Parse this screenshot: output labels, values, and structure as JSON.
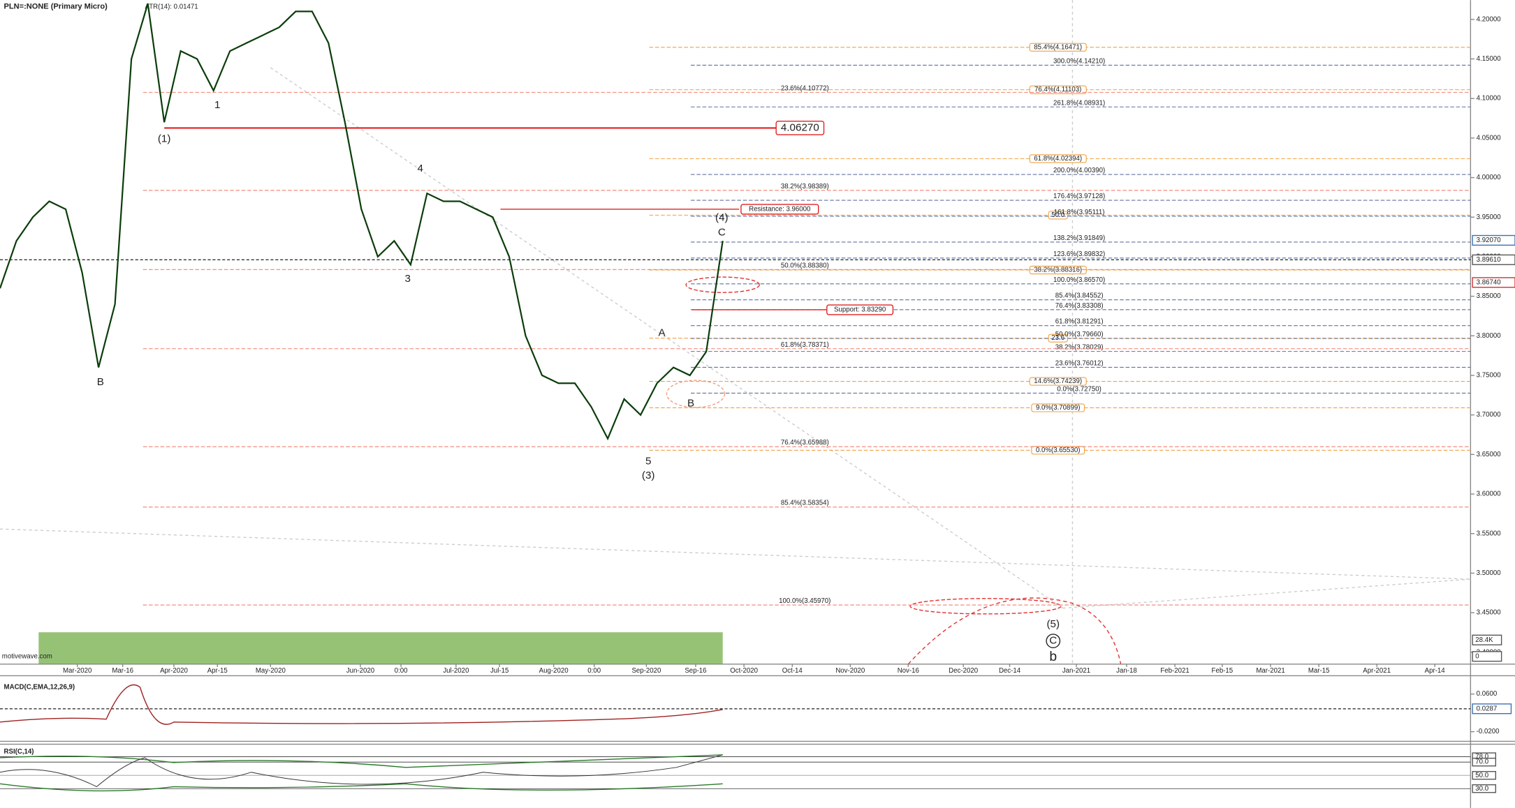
{
  "chart_data": {
    "type": "line",
    "title": "PLN=:NONE (Primary Micro)",
    "indicator": "ATR(14): 0.01471",
    "watermark": "motivewave.com",
    "ylim": [
      3.385,
      4.2244
    ],
    "yticks": [
      {
        "value": 4.2,
        "label": "4.20000"
      },
      {
        "value": 4.15,
        "label": "4.15000"
      },
      {
        "value": 4.1,
        "label": "4.10000"
      },
      {
        "value": 4.05,
        "label": "4.05000"
      },
      {
        "value": 4.0,
        "label": "4.00000"
      },
      {
        "value": 3.95,
        "label": "3.95000"
      },
      {
        "value": 3.9,
        "label": "3.90000"
      },
      {
        "value": 3.85,
        "label": "3.85000"
      },
      {
        "value": 3.8,
        "label": "3.80000"
      },
      {
        "value": 3.75,
        "label": "3.75000"
      },
      {
        "value": 3.7,
        "label": "3.70000"
      },
      {
        "value": 3.65,
        "label": "3.65000"
      },
      {
        "value": 3.6,
        "label": "3.60000"
      },
      {
        "value": 3.55,
        "label": "3.55000"
      },
      {
        "value": 3.5,
        "label": "3.50000"
      },
      {
        "value": 3.45,
        "label": "3.45000"
      },
      {
        "value": 3.4,
        "label": "3.40000"
      }
    ],
    "x_tick_labels": [
      "Mar-2020",
      "Mar-16",
      "Apr-2020",
      "Apr-15",
      "May-2020",
      "Jun-2020",
      "0:00",
      "Jul-2020",
      "Jul-15",
      "Aug-2020",
      "0:00",
      "Sep-2020",
      "Sep-16",
      "Oct-2020",
      "Oct-14",
      "Nov-2020",
      "Nov-16",
      "Dec-2020",
      "Dec-14",
      "Jan-2021",
      "Jan-18",
      "Feb-2021",
      "Feb-15",
      "Mar-2021",
      "Mar-15",
      "Apr-2021",
      "Apr-14"
    ],
    "series": [
      {
        "name": "PLN=",
        "color": "#0b3d0b",
        "values": [
          3.86,
          3.92,
          3.95,
          3.97,
          3.96,
          3.88,
          3.76,
          3.84,
          4.15,
          4.22,
          4.07,
          4.16,
          4.15,
          4.11,
          4.16,
          4.17,
          4.18,
          4.19,
          4.21,
          4.21,
          4.17,
          4.07,
          3.96,
          3.9,
          3.92,
          3.89,
          3.98,
          3.97,
          3.97,
          3.96,
          3.95,
          3.9,
          3.8,
          3.75,
          3.74,
          3.74,
          3.71,
          3.67,
          3.72,
          3.7,
          3.74,
          3.76,
          3.75,
          3.78,
          3.92
        ]
      }
    ],
    "last_price": 3.8961,
    "price_markers": [
      {
        "value": 3.9207,
        "label": "3.92070",
        "color": "#3b6fb6"
      },
      {
        "value": 3.8961,
        "label": "3.89610",
        "color": "#555555"
      },
      {
        "value": 3.8674,
        "label": "3.86740",
        "color": "#d03030"
      }
    ],
    "volume_scale": [
      "28.4K",
      "0"
    ],
    "key_levels": [
      {
        "value": 4.0627,
        "label": "4.06270"
      },
      {
        "value": 3.96,
        "label": "Resistance: 3.96000"
      },
      {
        "value": 3.8329,
        "label": "Support: 3.83290"
      }
    ],
    "fib_groups": [
      {
        "color": "#f0a040",
        "levels": [
          {
            "value": 4.16471,
            "label": "85.4%(4.16471)"
          },
          {
            "value": 4.11103,
            "label": "76.4%(4.11103)"
          },
          {
            "value": 4.02394,
            "label": "61.8%(4.02394)"
          },
          {
            "value": 3.9525,
            "label": "50.0"
          },
          {
            "value": 3.88316,
            "label": "38.2%(3.88316)"
          },
          {
            "value": 3.797,
            "label": "23.6"
          },
          {
            "value": 3.74239,
            "label": "14.6%(3.74239)"
          },
          {
            "value": 3.70899,
            "label": "9.0%(3.70899)"
          },
          {
            "value": 3.6553,
            "label": "0.0%(3.65530)"
          }
        ]
      },
      {
        "color": "#6070a0",
        "levels": [
          {
            "value": 4.1421,
            "label": "300.0%(4.14210)"
          },
          {
            "value": 4.08931,
            "label": "261.8%(4.08931)"
          },
          {
            "value": 4.0039,
            "label": "200.0%(4.00390)"
          },
          {
            "value": 3.97128,
            "label": "176.4%(3.97128)"
          },
          {
            "value": 3.95111,
            "label": "161.8%(3.95111)"
          },
          {
            "value": 3.91849,
            "label": "138.2%(3.91849)"
          },
          {
            "value": 3.89832,
            "label": "123.6%(3.89832)"
          },
          {
            "value": 3.8657,
            "label": "100.0%(3.86570)"
          },
          {
            "value": 3.84552,
            "label": "85.4%(3.84552)"
          },
          {
            "value": 3.83308,
            "label": "76.4%(3.83308)"
          },
          {
            "value": 3.81291,
            "label": "61.8%(3.81291)"
          },
          {
            "value": 3.7966,
            "label": "50.0%(3.79660)"
          },
          {
            "value": 3.78029,
            "label": "38.2%(3.78029)"
          },
          {
            "value": 3.76012,
            "label": "23.6%(3.76012)"
          },
          {
            "value": 3.7275,
            "label": "0.0%(3.72750)"
          }
        ]
      },
      {
        "color": "#f08070",
        "levels": [
          {
            "value": 4.10772,
            "label": "23.6%(4.10772)"
          },
          {
            "value": 3.98389,
            "label": "38.2%(3.98389)"
          },
          {
            "value": 3.8838,
            "label": "50.0%(3.88380)"
          },
          {
            "value": 3.78371,
            "label": "61.8%(3.78371)"
          },
          {
            "value": 3.65988,
            "label": "76.4%(3.65988)"
          },
          {
            "value": 3.58354,
            "label": "85.4%(3.58354)"
          },
          {
            "value": 3.4597,
            "label": "100.0%(3.45970)"
          }
        ]
      }
    ],
    "wave_labels": [
      "(1)",
      "1",
      "B",
      "4",
      "3",
      "(4)",
      "C",
      "A",
      "B",
      "5",
      "(3)",
      "(5)",
      "C",
      "b"
    ],
    "macd": {
      "label": "MACD(C,EMA,12,26,9)",
      "yticks": [
        {
          "value": 0.06,
          "label": "0.0600"
        },
        {
          "value": -0.02,
          "label": "-0.0200"
        }
      ],
      "last": {
        "value": 0.0287,
        "label": "0.0287"
      }
    },
    "rsi": {
      "label": "RSI(C,14)",
      "yticks": [
        {
          "value": 78,
          "label": "78.0"
        },
        {
          "value": 70,
          "label": "70.0"
        },
        {
          "value": 50,
          "label": "50.0"
        },
        {
          "value": 30,
          "label": "30.0"
        }
      ]
    }
  }
}
